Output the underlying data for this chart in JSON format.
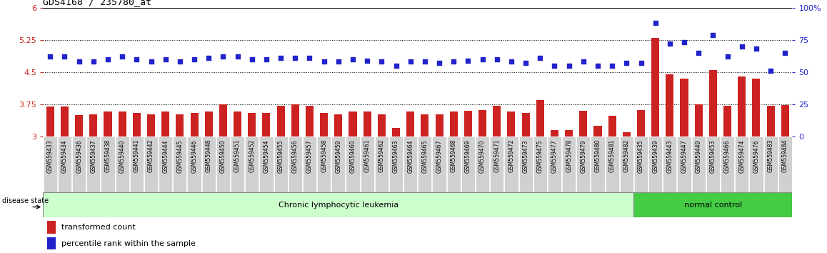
{
  "title": "GDS4168 / 235780_at",
  "samples": [
    "GSM559433",
    "GSM559434",
    "GSM559436",
    "GSM559437",
    "GSM559438",
    "GSM559440",
    "GSM559441",
    "GSM559442",
    "GSM559444",
    "GSM559445",
    "GSM559446",
    "GSM559448",
    "GSM559450",
    "GSM559451",
    "GSM559452",
    "GSM559454",
    "GSM559455",
    "GSM559456",
    "GSM559457",
    "GSM559458",
    "GSM559459",
    "GSM559460",
    "GSM559461",
    "GSM559462",
    "GSM559463",
    "GSM559464",
    "GSM559465",
    "GSM559467",
    "GSM559468",
    "GSM559469",
    "GSM559470",
    "GSM559471",
    "GSM559472",
    "GSM559473",
    "GSM559475",
    "GSM559477",
    "GSM559478",
    "GSM559479",
    "GSM559480",
    "GSM559481",
    "GSM559482",
    "GSM559435",
    "GSM559439",
    "GSM559443",
    "GSM559447",
    "GSM559449",
    "GSM559453",
    "GSM559466",
    "GSM559474",
    "GSM559476",
    "GSM559483",
    "GSM559484"
  ],
  "bar_values": [
    3.7,
    3.7,
    3.5,
    3.52,
    3.58,
    3.58,
    3.55,
    3.52,
    3.58,
    3.52,
    3.55,
    3.58,
    3.75,
    3.58,
    3.55,
    3.55,
    3.72,
    3.75,
    3.72,
    3.55,
    3.52,
    3.58,
    3.58,
    3.52,
    3.2,
    3.58,
    3.52,
    3.52,
    3.58,
    3.6,
    3.62,
    3.72,
    3.58,
    3.55,
    3.85,
    3.15,
    3.15,
    3.6,
    3.25,
    3.48,
    3.1,
    3.62,
    5.3,
    4.45,
    4.35,
    3.75,
    4.55,
    3.72,
    4.4,
    4.35,
    3.72,
    3.73
  ],
  "dot_values": [
    62,
    62,
    58,
    58,
    60,
    62,
    60,
    58,
    60,
    58,
    60,
    61,
    62,
    62,
    60,
    60,
    61,
    61,
    61,
    58,
    58,
    60,
    59,
    58,
    55,
    58,
    58,
    57,
    58,
    59,
    60,
    60,
    58,
    57,
    61,
    55,
    55,
    58,
    55,
    55,
    57,
    57,
    88,
    72,
    73,
    65,
    79,
    62,
    70,
    68,
    51,
    65
  ],
  "cll_count": 41,
  "nc_count": 11,
  "ymin": 3.0,
  "ymax": 6.0,
  "left_ticks": [
    3.0,
    3.75,
    4.5,
    5.25,
    6.0
  ],
  "left_tick_labels": [
    "3",
    "3.75",
    "4.5",
    "5.25",
    "6"
  ],
  "right_ticks": [
    0,
    25,
    50,
    75,
    100
  ],
  "right_tick_labels": [
    "0",
    "25",
    "50",
    "75",
    "100%"
  ],
  "bar_color": "#cc2222",
  "dot_color": "#2222cc",
  "cll_bg": "#ccffcc",
  "nc_bg": "#44cc44",
  "label_bg": "#d0d0d0",
  "white": "#ffffff",
  "figsize": [
    11.58,
    3.54
  ]
}
